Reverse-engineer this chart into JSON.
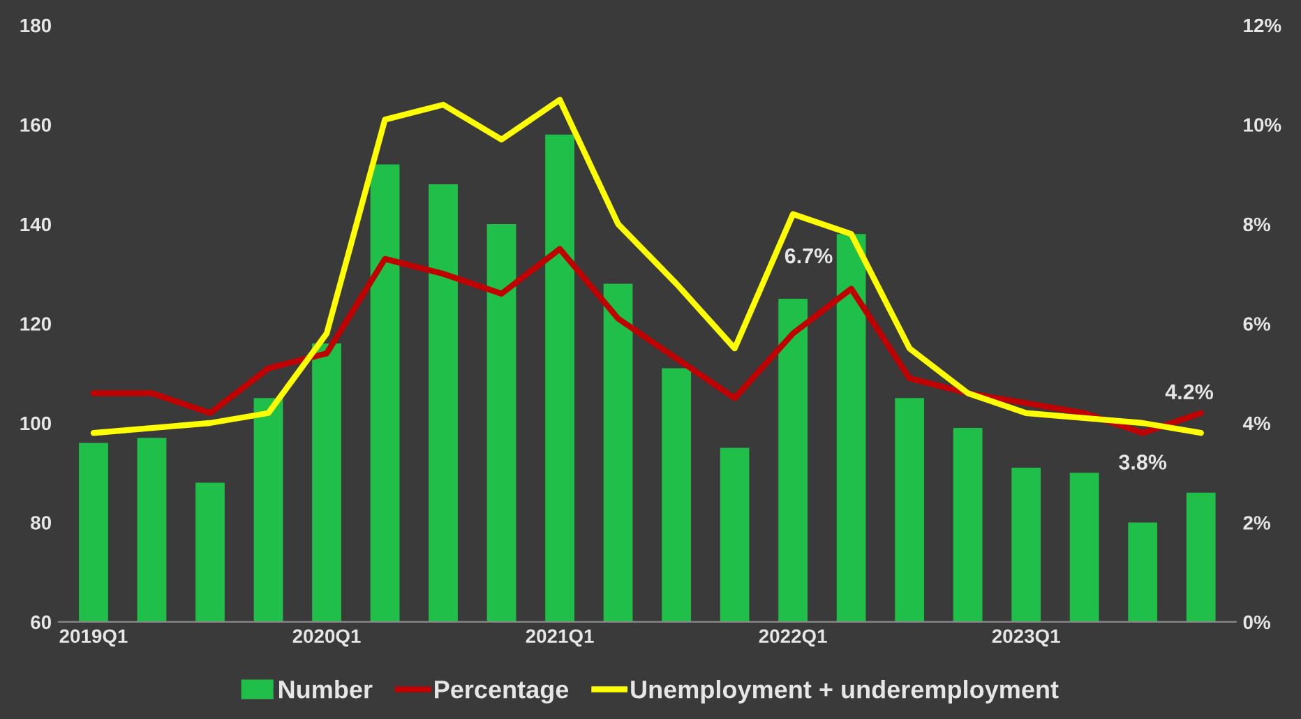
{
  "chart_data": {
    "type": "bar",
    "categories": [
      "2019Q1",
      null,
      null,
      null,
      "2020Q1",
      null,
      null,
      null,
      "2021Q1",
      null,
      null,
      null,
      "2022Q1",
      null,
      null,
      null,
      "2023Q1",
      null,
      null,
      null
    ],
    "series": [
      {
        "name": "Number",
        "color": "#1fbf4a",
        "values": [
          96,
          97,
          88,
          105,
          116,
          152,
          148,
          140,
          158,
          128,
          111,
          95,
          125,
          138,
          105,
          99,
          91,
          90,
          80,
          86
        ]
      },
      {
        "name": "Percentage",
        "type": "line",
        "axis": "y2",
        "color": "#c00000",
        "values": [
          4.6,
          4.6,
          4.2,
          5.1,
          5.4,
          7.3,
          7.0,
          6.6,
          7.5,
          6.1,
          5.3,
          4.5,
          5.8,
          6.7,
          4.9,
          4.6,
          4.4,
          4.2,
          3.8,
          4.2
        ],
        "value_labels": [
          null,
          null,
          null,
          null,
          null,
          null,
          null,
          null,
          null,
          null,
          null,
          null,
          null,
          "6.7%",
          null,
          null,
          null,
          null,
          "3.8%",
          "4.2%"
        ]
      },
      {
        "name": "Unemployment + underemployment",
        "type": "line",
        "axis": "y2",
        "color": "#ffff00",
        "values": [
          3.8,
          3.9,
          4.0,
          4.2,
          5.8,
          10.1,
          10.4,
          9.7,
          10.5,
          8.0,
          6.8,
          5.5,
          8.2,
          7.8,
          5.5,
          4.6,
          4.2,
          4.1,
          4.0,
          3.8
        ]
      }
    ],
    "ylim": [
      60,
      180
    ],
    "yticks": [
      60,
      80,
      100,
      120,
      140,
      160,
      180
    ],
    "y2lim": [
      0,
      12
    ],
    "y2ticks": [
      {
        "value": 0,
        "label": "0%"
      },
      {
        "value": 2,
        "label": "2%"
      },
      {
        "value": 4,
        "label": "4%"
      },
      {
        "value": 6,
        "label": "6%"
      },
      {
        "value": 8,
        "label": "8%"
      },
      {
        "value": 10,
        "label": "10%"
      },
      {
        "value": 12,
        "label": "12%"
      }
    ],
    "grid": false,
    "legend": "bottom"
  }
}
